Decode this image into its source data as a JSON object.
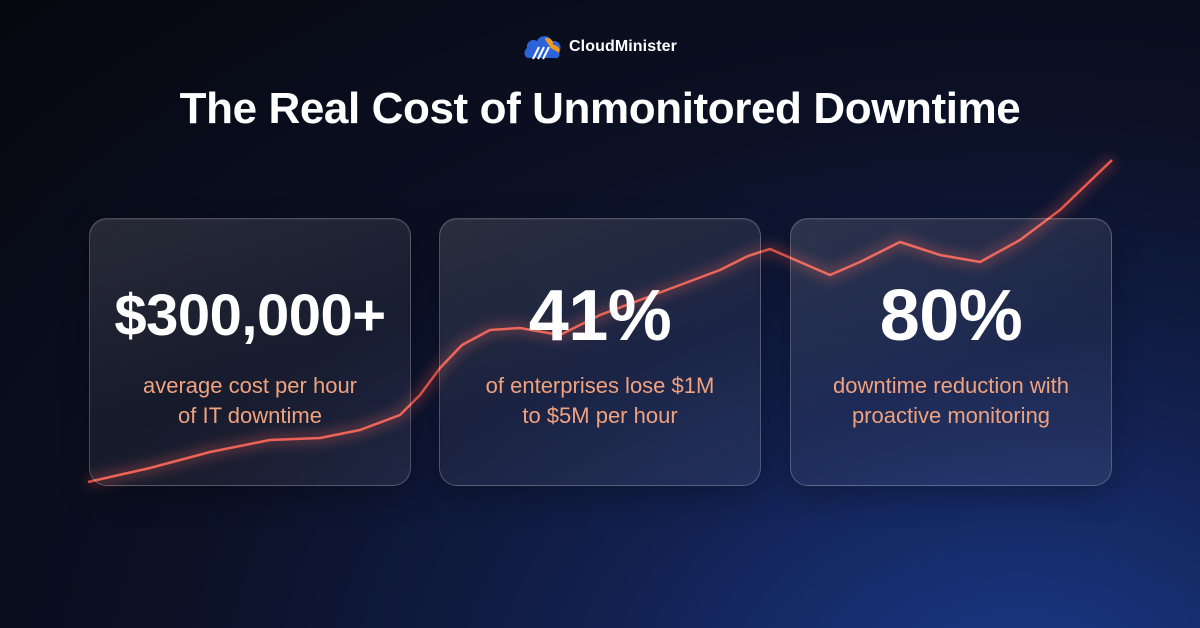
{
  "brand": {
    "name": "CloudMinister"
  },
  "title": "The Real Cost of Unmonitored Downtime",
  "cards": [
    {
      "value": "$300,000+",
      "line1": "average cost per hour",
      "line2": "of IT downtime"
    },
    {
      "value": "41%",
      "line1": "of enterprises lose $1M",
      "line2": "to $5M per hour"
    },
    {
      "value": "80%",
      "line1": "downtime reduction with",
      "line2": "proactive monitoring"
    }
  ],
  "colors": {
    "accent": "#f0a27f",
    "trend_line": "#e5544a",
    "logo_blue": "#2d63d8",
    "logo_orange": "#f39a1e"
  }
}
